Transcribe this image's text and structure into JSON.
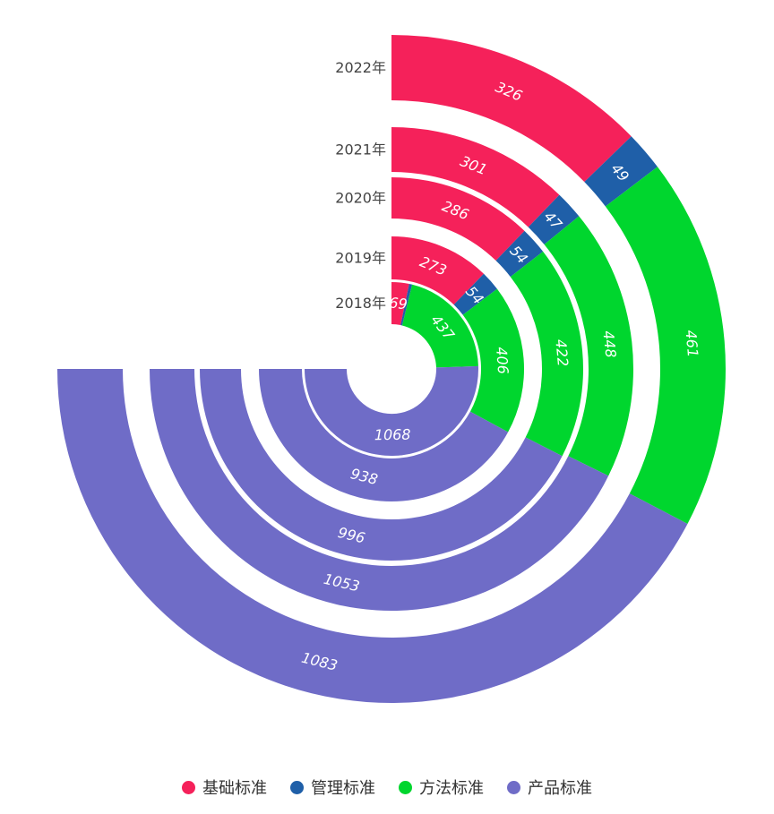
{
  "chart_data": {
    "type": "polar-stacked-bar",
    "title": "",
    "categories": [
      "2018年",
      "2019年",
      "2020年",
      "2021年",
      "2022年"
    ],
    "total_angle_degrees": 270,
    "series": [
      {
        "name": "基础标准",
        "color": "#f5215a",
        "values": [
          69,
          273,
          286,
          301,
          326
        ]
      },
      {
        "name": "管理标准",
        "color": "#1f5fa8",
        "values": [
          12,
          54,
          54,
          47,
          49
        ]
      },
      {
        "name": "方法标准",
        "color": "#00d62e",
        "values": [
          437,
          406,
          422,
          448,
          461
        ]
      },
      {
        "name": "产品标准",
        "color": "#6f6cc7",
        "values": [
          1068,
          938,
          996,
          1053,
          1083
        ]
      }
    ],
    "label_threshold": 30,
    "legend_position": "bottom"
  }
}
